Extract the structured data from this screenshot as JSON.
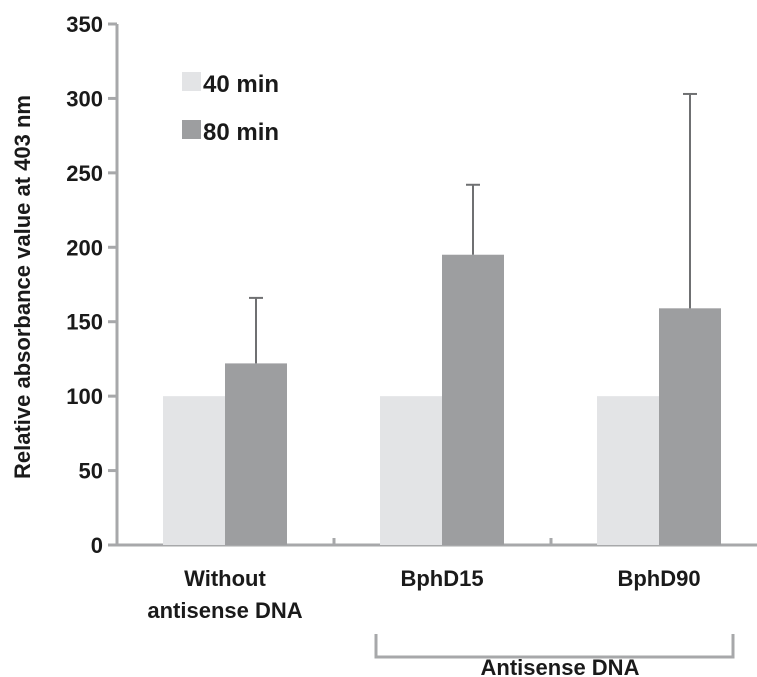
{
  "chart_data": {
    "type": "bar",
    "ylabel": "Relative absorbance value at 403 nm",
    "ylim": [
      0,
      350
    ],
    "yticks": [
      0,
      50,
      100,
      150,
      200,
      250,
      300,
      350
    ],
    "categories": [
      {
        "lines": [
          "Without",
          "antisense DNA"
        ]
      },
      {
        "lines": [
          "BphD15"
        ]
      },
      {
        "lines": [
          "BphD90"
        ]
      }
    ],
    "series": [
      {
        "name": "40 min",
        "color": "#e3e4e6",
        "values": [
          100,
          100,
          100
        ]
      },
      {
        "name": "80 min",
        "color": "#9d9ea0",
        "values": [
          122,
          195,
          159
        ],
        "error_plus": [
          44,
          47,
          144
        ]
      }
    ],
    "group_bracket": {
      "label": "Antisense DNA",
      "spans_categories": [
        1,
        2
      ]
    },
    "legend": "top-left",
    "grid": false
  }
}
